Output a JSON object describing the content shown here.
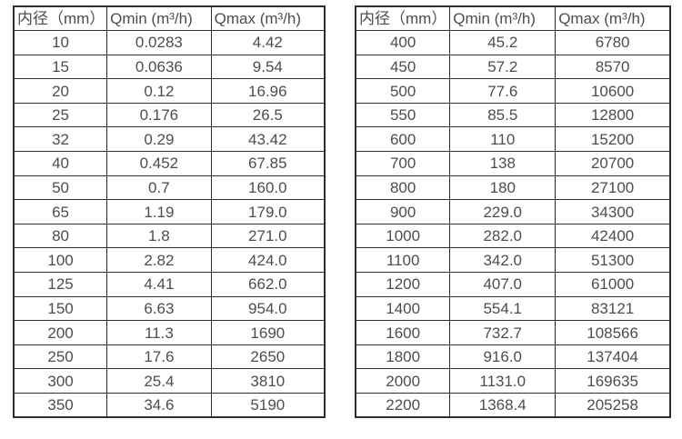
{
  "colors": {
    "border": "#2e2e2e",
    "text": "#4d4d4d",
    "background": "#ffffff"
  },
  "tables": [
    {
      "name": "flow-table-small-diameters",
      "headers": [
        "内径（mm）",
        "Qmin (m³/h)",
        "Qmax (m³/h)"
      ],
      "rows": [
        [
          "10",
          "0.0283",
          "4.42"
        ],
        [
          "15",
          "0.0636",
          "9.54"
        ],
        [
          "20",
          "0.12",
          "16.96"
        ],
        [
          "25",
          "0.176",
          "26.5"
        ],
        [
          "32",
          "0.29",
          "43.42"
        ],
        [
          "40",
          "0.452",
          "67.85"
        ],
        [
          "50",
          "0.7",
          "160.0"
        ],
        [
          "65",
          "1.19",
          "179.0"
        ],
        [
          "80",
          "1.8",
          "271.0"
        ],
        [
          "100",
          "2.82",
          "424.0"
        ],
        [
          "125",
          "4.41",
          "662.0"
        ],
        [
          "150",
          "6.63",
          "954.0"
        ],
        [
          "200",
          "11.3",
          "1690"
        ],
        [
          "250",
          "17.6",
          "2650"
        ],
        [
          "300",
          "25.4",
          "3810"
        ],
        [
          "350",
          "34.6",
          "5190"
        ]
      ]
    },
    {
      "name": "flow-table-large-diameters",
      "headers": [
        "内径（mm）",
        "Qmin (m³/h)",
        "Qmax (m³/h)"
      ],
      "rows": [
        [
          "400",
          "45.2",
          "6780"
        ],
        [
          "450",
          "57.2",
          "8570"
        ],
        [
          "500",
          "77.6",
          "10600"
        ],
        [
          "550",
          "85.5",
          "12800"
        ],
        [
          "600",
          "110",
          "15200"
        ],
        [
          "700",
          "138",
          "20700"
        ],
        [
          "800",
          "180",
          "27100"
        ],
        [
          "900",
          "229.0",
          "34300"
        ],
        [
          "1000",
          "282.0",
          "42400"
        ],
        [
          "1100",
          "342.0",
          "51300"
        ],
        [
          "1200",
          "407.0",
          "61000"
        ],
        [
          "1400",
          "554.1",
          "83121"
        ],
        [
          "1600",
          "732.7",
          "108566"
        ],
        [
          "1800",
          "916.0",
          "137404"
        ],
        [
          "2000",
          "1131.0",
          "169635"
        ],
        [
          "2200",
          "1368.4",
          "205258"
        ]
      ]
    }
  ],
  "chart_data": [
    {
      "type": "table",
      "title": "",
      "columns": [
        "内径（mm）",
        "Qmin (m³/h)",
        "Qmax (m³/h)"
      ],
      "rows": [
        [
          "10",
          "0.0283",
          "4.42"
        ],
        [
          "15",
          "0.0636",
          "9.54"
        ],
        [
          "20",
          "0.12",
          "16.96"
        ],
        [
          "25",
          "0.176",
          "26.5"
        ],
        [
          "32",
          "0.29",
          "43.42"
        ],
        [
          "40",
          "0.452",
          "67.85"
        ],
        [
          "50",
          "0.7",
          "160.0"
        ],
        [
          "65",
          "1.19",
          "179.0"
        ],
        [
          "80",
          "1.8",
          "271.0"
        ],
        [
          "100",
          "2.82",
          "424.0"
        ],
        [
          "125",
          "4.41",
          "662.0"
        ],
        [
          "150",
          "6.63",
          "954.0"
        ],
        [
          "200",
          "11.3",
          "1690"
        ],
        [
          "250",
          "17.6",
          "2650"
        ],
        [
          "300",
          "25.4",
          "3810"
        ],
        [
          "350",
          "34.6",
          "5190"
        ]
      ]
    },
    {
      "type": "table",
      "title": "",
      "columns": [
        "内径（mm）",
        "Qmin (m³/h)",
        "Qmax (m³/h)"
      ],
      "rows": [
        [
          "400",
          "45.2",
          "6780"
        ],
        [
          "450",
          "57.2",
          "8570"
        ],
        [
          "500",
          "77.6",
          "10600"
        ],
        [
          "550",
          "85.5",
          "12800"
        ],
        [
          "600",
          "110",
          "15200"
        ],
        [
          "700",
          "138",
          "20700"
        ],
        [
          "800",
          "180",
          "27100"
        ],
        [
          "900",
          "229.0",
          "34300"
        ],
        [
          "1000",
          "282.0",
          "42400"
        ],
        [
          "1100",
          "342.0",
          "51300"
        ],
        [
          "1200",
          "407.0",
          "61000"
        ],
        [
          "1400",
          "554.1",
          "83121"
        ],
        [
          "1600",
          "732.7",
          "108566"
        ],
        [
          "1800",
          "916.0",
          "137404"
        ],
        [
          "2000",
          "1131.0",
          "169635"
        ],
        [
          "2200",
          "1368.4",
          "205258"
        ]
      ]
    }
  ]
}
